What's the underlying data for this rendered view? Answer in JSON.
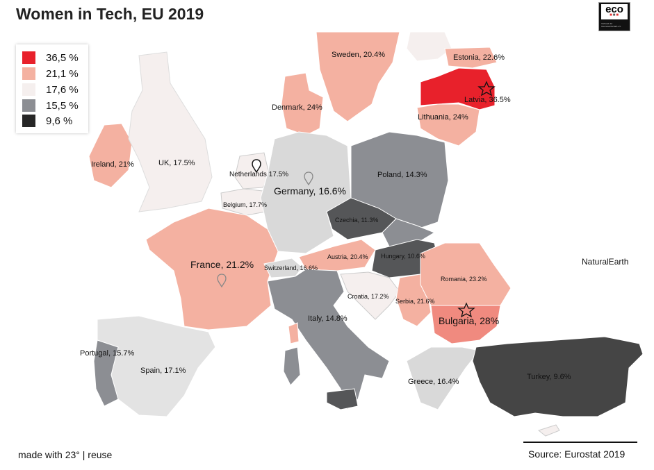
{
  "title": "Women in Tech, EU 2019",
  "logo": {
    "brand": "eco",
    "subtitle": "Verband der Internetwirtschaft e.V."
  },
  "legend": [
    {
      "label": "36,5 %",
      "color": "#e8212b"
    },
    {
      "label": "21,1 %",
      "color": "#f4b1a1"
    },
    {
      "label": "17,6 %",
      "color": "#f5efee"
    },
    {
      "label": "15,5 %",
      "color": "#8c8e93"
    },
    {
      "label": "9,6 %",
      "color": "#262626"
    }
  ],
  "countries": {
    "sweden": "Sweden, 20.4%",
    "estonia": "Estonia, 22.6%",
    "latvia": "Latvia, 36.5%",
    "lithuania": "Lithuania, 24%",
    "denmark": "Denmark, 24%",
    "ireland": "Ireland, 21%",
    "uk": "UK, 17.5%",
    "netherlands": "Netherlands 17.5%",
    "poland": "Poland, 14.3%",
    "germany": "Germany, 16.6%",
    "belgium": "Belgium, 17.7%",
    "czechia": "Czechia, 11.3%",
    "france": "France, 21.2%",
    "switzerland": "Switzerland, 16.6%",
    "austria": "Austria, 20.4%",
    "hungary": "Hungary, 10.6%",
    "romania": "Romania, 23.2%",
    "croatia": "Croatia, 17.2%",
    "serbia": "Serbia, 21.6%",
    "bulgaria": "Bulgaria, 28%",
    "italy": "Italy, 14.8%",
    "portugal": "Portugal, 15.7%",
    "spain": "Spain, 17.1%",
    "greece": "Greece, 16.4%",
    "turkey": "Turkey, 9.6%"
  },
  "basemap_credit": "NaturalEarth",
  "footer": {
    "made_with": "made with 23° | reuse",
    "source": "Source: Eurostat 2019"
  }
}
